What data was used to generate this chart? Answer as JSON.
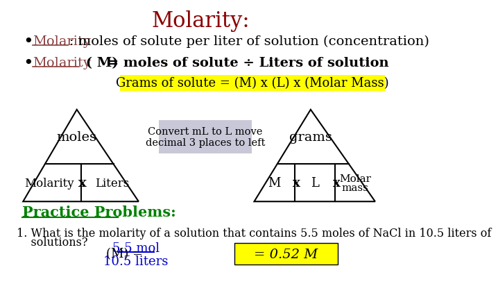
{
  "title": "Molarity:",
  "title_color": "#8B0000",
  "title_fontsize": 22,
  "bg_color": "#ffffff",
  "bullet1_underline": "Molarity",
  "bullet1_rest": ": moles of solute per liter of solution (concentration)",
  "bullet2_underline": "Molarity",
  "bullet2_rest2": " = moles of solute ÷ Liters of solution",
  "yellow_box_text": "Grams of solute = (M) x (L) x (Molar Mass)",
  "yellow_color": "#FFFF00",
  "convert_text": "Convert mL to L move\ndecimal 3 places to left",
  "convert_bg": "#C8C8D8",
  "tri1_label_top": "moles",
  "tri1_label_bl": "Molarity",
  "tri1_label_bx": "x",
  "tri1_label_br": "Liters",
  "tri2_label_top": "grams",
  "tri2_label_bl": "M",
  "tri2_label_bx1": "x",
  "tri2_label_bm": "L",
  "tri2_label_bx2": "x",
  "tri2_label_br1": "Molar",
  "tri2_label_br2": "mass",
  "practice_text": "Practice Problems:",
  "practice_color": "#008000",
  "q1_line1": "1. What is the molarity of a solution that contains 5.5 moles of NaCl in 10.5 liters of",
  "q1_line2": "    solutions?",
  "q1_formula_prefix": "(M) = ",
  "q1_formula_num": "5.5 mol",
  "q1_formula_denom": "10.5 liters",
  "q1_answer": "= 0.52 M"
}
